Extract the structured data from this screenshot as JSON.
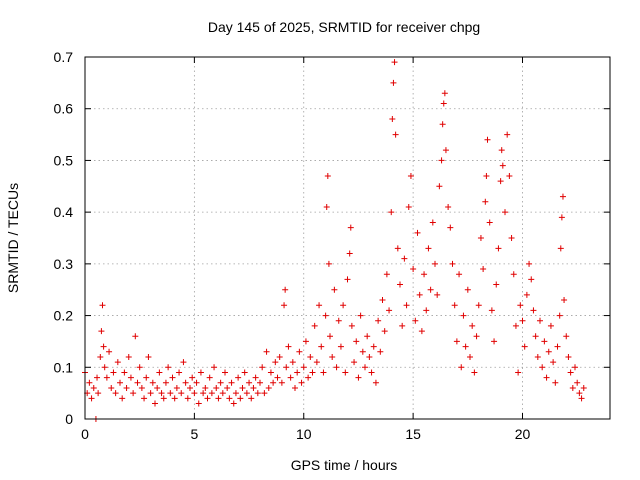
{
  "chart_data": {
    "type": "scatter",
    "title": "Day 145 of 2025, SRMTID for receiver chpg",
    "xlabel": "GPS time / hours",
    "ylabel": "SRMTID / TECUs",
    "xlim": [
      0,
      24
    ],
    "ylim": [
      0,
      0.7
    ],
    "xticks": [
      0,
      5,
      10,
      15,
      20
    ],
    "yticks": [
      0,
      0.1,
      0.2,
      0.3,
      0.4,
      0.5,
      0.6,
      0.7
    ],
    "grid": true,
    "marker": "+",
    "color": "#e00000",
    "series": [
      {
        "name": "SRMTID",
        "points": [
          [
            0.0,
            0.09
          ],
          [
            0.1,
            0.05
          ],
          [
            0.2,
            0.07
          ],
          [
            0.3,
            0.04
          ],
          [
            0.4,
            0.06
          ],
          [
            0.5,
            0.0
          ],
          [
            0.55,
            0.08
          ],
          [
            0.6,
            0.05
          ],
          [
            0.7,
            0.12
          ],
          [
            0.75,
            0.17
          ],
          [
            0.8,
            0.22
          ],
          [
            0.85,
            0.14
          ],
          [
            0.9,
            0.1
          ],
          [
            1.0,
            0.08
          ],
          [
            1.1,
            0.13
          ],
          [
            1.2,
            0.06
          ],
          [
            1.3,
            0.09
          ],
          [
            1.4,
            0.05
          ],
          [
            1.5,
            0.11
          ],
          [
            1.6,
            0.07
          ],
          [
            1.7,
            0.04
          ],
          [
            1.8,
            0.09
          ],
          [
            1.9,
            0.06
          ],
          [
            2.0,
            0.12
          ],
          [
            2.1,
            0.08
          ],
          [
            2.2,
            0.05
          ],
          [
            2.3,
            0.16
          ],
          [
            2.4,
            0.07
          ],
          [
            2.5,
            0.1
          ],
          [
            2.6,
            0.06
          ],
          [
            2.7,
            0.04
          ],
          [
            2.8,
            0.08
          ],
          [
            2.9,
            0.12
          ],
          [
            3.0,
            0.05
          ],
          [
            3.1,
            0.07
          ],
          [
            3.2,
            0.03
          ],
          [
            3.3,
            0.06
          ],
          [
            3.4,
            0.09
          ],
          [
            3.5,
            0.05
          ],
          [
            3.6,
            0.04
          ],
          [
            3.7,
            0.07
          ],
          [
            3.8,
            0.1
          ],
          [
            3.9,
            0.05
          ],
          [
            4.0,
            0.08
          ],
          [
            4.1,
            0.04
          ],
          [
            4.2,
            0.06
          ],
          [
            4.3,
            0.09
          ],
          [
            4.4,
            0.05
          ],
          [
            4.5,
            0.11
          ],
          [
            4.6,
            0.07
          ],
          [
            4.7,
            0.04
          ],
          [
            4.8,
            0.06
          ],
          [
            4.9,
            0.08
          ],
          [
            5.0,
            0.05
          ],
          [
            5.1,
            0.07
          ],
          [
            5.2,
            0.03
          ],
          [
            5.3,
            0.09
          ],
          [
            5.4,
            0.05
          ],
          [
            5.5,
            0.06
          ],
          [
            5.6,
            0.04
          ],
          [
            5.7,
            0.08
          ],
          [
            5.8,
            0.05
          ],
          [
            5.9,
            0.1
          ],
          [
            6.0,
            0.06
          ],
          [
            6.1,
            0.04
          ],
          [
            6.2,
            0.07
          ],
          [
            6.3,
            0.05
          ],
          [
            6.4,
            0.09
          ],
          [
            6.5,
            0.06
          ],
          [
            6.6,
            0.04
          ],
          [
            6.7,
            0.07
          ],
          [
            6.8,
            0.03
          ],
          [
            6.9,
            0.05
          ],
          [
            7.0,
            0.08
          ],
          [
            7.1,
            0.04
          ],
          [
            7.2,
            0.06
          ],
          [
            7.3,
            0.09
          ],
          [
            7.4,
            0.05
          ],
          [
            7.5,
            0.07
          ],
          [
            7.6,
            0.04
          ],
          [
            7.7,
            0.06
          ],
          [
            7.8,
            0.08
          ],
          [
            7.9,
            0.05
          ],
          [
            8.0,
            0.07
          ],
          [
            8.1,
            0.1
          ],
          [
            8.2,
            0.05
          ],
          [
            8.3,
            0.13
          ],
          [
            8.4,
            0.06
          ],
          [
            8.5,
            0.09
          ],
          [
            8.6,
            0.07
          ],
          [
            8.7,
            0.11
          ],
          [
            8.8,
            0.08
          ],
          [
            8.9,
            0.12
          ],
          [
            9.0,
            0.07
          ],
          [
            9.1,
            0.22
          ],
          [
            9.15,
            0.25
          ],
          [
            9.2,
            0.1
          ],
          [
            9.3,
            0.14
          ],
          [
            9.4,
            0.08
          ],
          [
            9.5,
            0.11
          ],
          [
            9.6,
            0.06
          ],
          [
            9.7,
            0.09
          ],
          [
            9.8,
            0.13
          ],
          [
            9.9,
            0.07
          ],
          [
            10.0,
            0.1
          ],
          [
            10.1,
            0.15
          ],
          [
            10.2,
            0.08
          ],
          [
            10.3,
            0.12
          ],
          [
            10.4,
            0.09
          ],
          [
            10.5,
            0.18
          ],
          [
            10.6,
            0.11
          ],
          [
            10.7,
            0.22
          ],
          [
            10.8,
            0.14
          ],
          [
            10.9,
            0.09
          ],
          [
            11.0,
            0.2
          ],
          [
            11.05,
            0.41
          ],
          [
            11.1,
            0.47
          ],
          [
            11.15,
            0.3
          ],
          [
            11.2,
            0.16
          ],
          [
            11.3,
            0.12
          ],
          [
            11.4,
            0.25
          ],
          [
            11.5,
            0.1
          ],
          [
            11.6,
            0.19
          ],
          [
            11.7,
            0.14
          ],
          [
            11.8,
            0.22
          ],
          [
            11.9,
            0.09
          ],
          [
            12.0,
            0.27
          ],
          [
            12.1,
            0.32
          ],
          [
            12.15,
            0.37
          ],
          [
            12.2,
            0.18
          ],
          [
            12.3,
            0.11
          ],
          [
            12.4,
            0.15
          ],
          [
            12.5,
            0.08
          ],
          [
            12.6,
            0.2
          ],
          [
            12.7,
            0.13
          ],
          [
            12.8,
            0.1
          ],
          [
            12.9,
            0.16
          ],
          [
            13.0,
            0.12
          ],
          [
            13.1,
            0.09
          ],
          [
            13.2,
            0.14
          ],
          [
            13.3,
            0.07
          ],
          [
            13.4,
            0.19
          ],
          [
            13.5,
            0.13
          ],
          [
            13.6,
            0.23
          ],
          [
            13.7,
            0.17
          ],
          [
            13.8,
            0.28
          ],
          [
            13.9,
            0.21
          ],
          [
            14.0,
            0.4
          ],
          [
            14.05,
            0.58
          ],
          [
            14.1,
            0.65
          ],
          [
            14.15,
            0.69
          ],
          [
            14.2,
            0.55
          ],
          [
            14.3,
            0.33
          ],
          [
            14.4,
            0.26
          ],
          [
            14.5,
            0.18
          ],
          [
            14.6,
            0.31
          ],
          [
            14.7,
            0.22
          ],
          [
            14.8,
            0.41
          ],
          [
            14.9,
            0.47
          ],
          [
            15.0,
            0.29
          ],
          [
            15.1,
            0.19
          ],
          [
            15.2,
            0.36
          ],
          [
            15.3,
            0.24
          ],
          [
            15.4,
            0.17
          ],
          [
            15.5,
            0.28
          ],
          [
            15.6,
            0.21
          ],
          [
            15.7,
            0.33
          ],
          [
            15.8,
            0.25
          ],
          [
            15.9,
            0.38
          ],
          [
            16.0,
            0.3
          ],
          [
            16.1,
            0.24
          ],
          [
            16.2,
            0.45
          ],
          [
            16.3,
            0.5
          ],
          [
            16.35,
            0.57
          ],
          [
            16.4,
            0.61
          ],
          [
            16.45,
            0.63
          ],
          [
            16.5,
            0.52
          ],
          [
            16.6,
            0.41
          ],
          [
            16.7,
            0.37
          ],
          [
            16.8,
            0.3
          ],
          [
            16.9,
            0.22
          ],
          [
            17.0,
            0.15
          ],
          [
            17.1,
            0.28
          ],
          [
            17.2,
            0.1
          ],
          [
            17.3,
            0.2
          ],
          [
            17.4,
            0.14
          ],
          [
            17.5,
            0.25
          ],
          [
            17.6,
            0.12
          ],
          [
            17.7,
            0.18
          ],
          [
            17.8,
            0.09
          ],
          [
            17.9,
            0.16
          ],
          [
            18.0,
            0.22
          ],
          [
            18.1,
            0.35
          ],
          [
            18.2,
            0.29
          ],
          [
            18.3,
            0.42
          ],
          [
            18.35,
            0.47
          ],
          [
            18.4,
            0.54
          ],
          [
            18.5,
            0.38
          ],
          [
            18.6,
            0.21
          ],
          [
            18.7,
            0.15
          ],
          [
            18.8,
            0.26
          ],
          [
            18.9,
            0.33
          ],
          [
            19.0,
            0.46
          ],
          [
            19.05,
            0.52
          ],
          [
            19.1,
            0.49
          ],
          [
            19.2,
            0.4
          ],
          [
            19.3,
            0.55
          ],
          [
            19.4,
            0.47
          ],
          [
            19.5,
            0.35
          ],
          [
            19.6,
            0.28
          ],
          [
            19.7,
            0.18
          ],
          [
            19.8,
            0.09
          ],
          [
            19.9,
            0.22
          ],
          [
            20.0,
            0.19
          ],
          [
            20.1,
            0.14
          ],
          [
            20.2,
            0.24
          ],
          [
            20.3,
            0.3
          ],
          [
            20.4,
            0.27
          ],
          [
            20.5,
            0.21
          ],
          [
            20.6,
            0.16
          ],
          [
            20.7,
            0.12
          ],
          [
            20.8,
            0.19
          ],
          [
            20.9,
            0.1
          ],
          [
            21.0,
            0.15
          ],
          [
            21.1,
            0.08
          ],
          [
            21.2,
            0.13
          ],
          [
            21.3,
            0.18
          ],
          [
            21.4,
            0.11
          ],
          [
            21.5,
            0.07
          ],
          [
            21.6,
            0.14
          ],
          [
            21.7,
            0.2
          ],
          [
            21.75,
            0.33
          ],
          [
            21.8,
            0.39
          ],
          [
            21.85,
            0.43
          ],
          [
            21.9,
            0.23
          ],
          [
            22.0,
            0.16
          ],
          [
            22.1,
            0.12
          ],
          [
            22.2,
            0.09
          ],
          [
            22.3,
            0.06
          ],
          [
            22.4,
            0.1
          ],
          [
            22.5,
            0.07
          ],
          [
            22.6,
            0.05
          ],
          [
            22.7,
            0.04
          ],
          [
            22.8,
            0.06
          ]
        ]
      }
    ]
  }
}
